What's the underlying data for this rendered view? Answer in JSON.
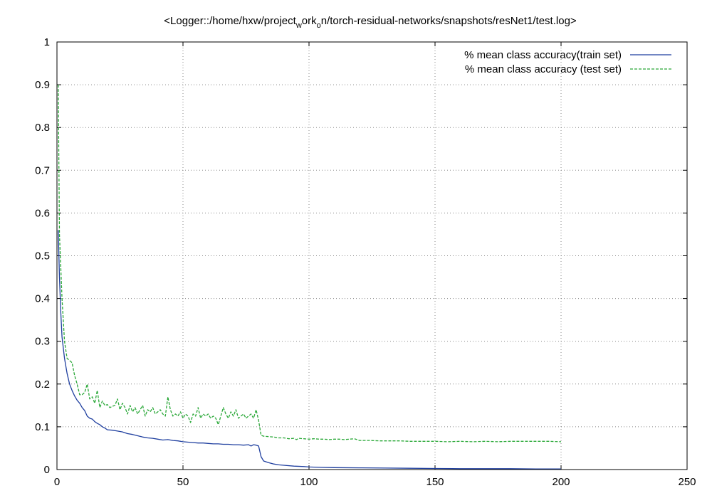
{
  "chart_data": {
    "type": "line",
    "title": {
      "pre": "<Logger::/home/hxw/project",
      "sub1": "w",
      "mid": "ork",
      "sub2": "o",
      "post": "n/torch-residual-networks/snapshots/resNet1/test.log>"
    },
    "xlabel": "",
    "ylabel": "",
    "xlim": [
      0,
      250
    ],
    "ylim": [
      0,
      1
    ],
    "xticks": [
      "0",
      "50",
      "100",
      "150",
      "200",
      "250"
    ],
    "yticks": [
      "0",
      "0.1",
      "0.2",
      "0.3",
      "0.4",
      "0.5",
      "0.6",
      "0.7",
      "0.8",
      "0.9",
      "1"
    ],
    "grid": true,
    "legend_position": "top-right",
    "series": [
      {
        "name": "% mean class accuracy(train set)",
        "color": "#1f3f9f",
        "style": "solid",
        "points": [
          [
            0.5,
            0.56
          ],
          [
            1,
            0.45
          ],
          [
            1.5,
            0.37
          ],
          [
            2,
            0.31
          ],
          [
            3,
            0.26
          ],
          [
            4,
            0.225
          ],
          [
            5,
            0.2
          ],
          [
            6,
            0.185
          ],
          [
            7,
            0.172
          ],
          [
            8,
            0.162
          ],
          [
            9,
            0.155
          ],
          [
            10,
            0.145
          ],
          [
            11,
            0.138
          ],
          [
            12,
            0.125
          ],
          [
            13,
            0.12
          ],
          [
            14,
            0.118
          ],
          [
            15,
            0.112
          ],
          [
            16,
            0.108
          ],
          [
            17,
            0.105
          ],
          [
            18,
            0.1
          ],
          [
            19,
            0.097
          ],
          [
            20,
            0.093
          ],
          [
            22,
            0.092
          ],
          [
            24,
            0.09
          ],
          [
            26,
            0.088
          ],
          [
            28,
            0.084
          ],
          [
            30,
            0.082
          ],
          [
            32,
            0.079
          ],
          [
            34,
            0.076
          ],
          [
            36,
            0.074
          ],
          [
            38,
            0.073
          ],
          [
            40,
            0.071
          ],
          [
            42,
            0.069
          ],
          [
            44,
            0.07
          ],
          [
            46,
            0.068
          ],
          [
            48,
            0.067
          ],
          [
            50,
            0.065
          ],
          [
            52,
            0.064
          ],
          [
            54,
            0.063
          ],
          [
            56,
            0.062
          ],
          [
            58,
            0.062
          ],
          [
            60,
            0.061
          ],
          [
            62,
            0.06
          ],
          [
            64,
            0.06
          ],
          [
            66,
            0.059
          ],
          [
            68,
            0.059
          ],
          [
            70,
            0.058
          ],
          [
            72,
            0.058
          ],
          [
            74,
            0.057
          ],
          [
            76,
            0.058
          ],
          [
            77,
            0.055
          ],
          [
            78,
            0.058
          ],
          [
            79,
            0.057
          ],
          [
            80,
            0.055
          ],
          [
            81,
            0.03
          ],
          [
            82,
            0.02
          ],
          [
            84,
            0.016
          ],
          [
            86,
            0.013
          ],
          [
            88,
            0.011
          ],
          [
            90,
            0.01
          ],
          [
            94,
            0.008
          ],
          [
            98,
            0.007
          ],
          [
            100,
            0.006
          ],
          [
            105,
            0.005
          ],
          [
            110,
            0.0045
          ],
          [
            120,
            0.004
          ],
          [
            130,
            0.0035
          ],
          [
            140,
            0.003
          ],
          [
            150,
            0.0025
          ],
          [
            160,
            0.002
          ],
          [
            170,
            0.002
          ],
          [
            180,
            0.002
          ],
          [
            190,
            0.0015
          ],
          [
            200,
            0.0015
          ]
        ]
      },
      {
        "name": "% mean class accuracy (test set)",
        "color": "#2aa838",
        "style": "dashed",
        "points": [
          [
            0.5,
            0.9
          ],
          [
            1,
            0.55
          ],
          [
            2,
            0.4
          ],
          [
            3,
            0.3
          ],
          [
            4,
            0.26
          ],
          [
            5,
            0.255
          ],
          [
            6,
            0.25
          ],
          [
            7,
            0.22
          ],
          [
            8,
            0.2
          ],
          [
            9,
            0.175
          ],
          [
            10,
            0.175
          ],
          [
            11,
            0.18
          ],
          [
            12,
            0.2
          ],
          [
            13,
            0.165
          ],
          [
            14,
            0.17
          ],
          [
            15,
            0.155
          ],
          [
            16,
            0.185
          ],
          [
            17,
            0.145
          ],
          [
            18,
            0.16
          ],
          [
            19,
            0.15
          ],
          [
            20,
            0.152
          ],
          [
            21,
            0.145
          ],
          [
            22,
            0.148
          ],
          [
            23,
            0.15
          ],
          [
            24,
            0.165
          ],
          [
            25,
            0.14
          ],
          [
            26,
            0.155
          ],
          [
            27,
            0.145
          ],
          [
            28,
            0.13
          ],
          [
            29,
            0.15
          ],
          [
            30,
            0.135
          ],
          [
            31,
            0.145
          ],
          [
            32,
            0.13
          ],
          [
            33,
            0.14
          ],
          [
            34,
            0.15
          ],
          [
            35,
            0.125
          ],
          [
            36,
            0.14
          ],
          [
            37,
            0.135
          ],
          [
            38,
            0.145
          ],
          [
            39,
            0.13
          ],
          [
            40,
            0.135
          ],
          [
            41,
            0.14
          ],
          [
            42,
            0.13
          ],
          [
            43,
            0.125
          ],
          [
            44,
            0.17
          ],
          [
            45,
            0.14
          ],
          [
            46,
            0.125
          ],
          [
            47,
            0.13
          ],
          [
            48,
            0.125
          ],
          [
            49,
            0.135
          ],
          [
            50,
            0.12
          ],
          [
            51,
            0.13
          ],
          [
            52,
            0.125
          ],
          [
            53,
            0.11
          ],
          [
            54,
            0.13
          ],
          [
            55,
            0.125
          ],
          [
            56,
            0.145
          ],
          [
            57,
            0.12
          ],
          [
            58,
            0.13
          ],
          [
            59,
            0.125
          ],
          [
            60,
            0.13
          ],
          [
            61,
            0.12
          ],
          [
            62,
            0.125
          ],
          [
            63,
            0.12
          ],
          [
            64,
            0.105
          ],
          [
            65,
            0.125
          ],
          [
            66,
            0.145
          ],
          [
            67,
            0.13
          ],
          [
            68,
            0.12
          ],
          [
            69,
            0.135
          ],
          [
            70,
            0.125
          ],
          [
            71,
            0.14
          ],
          [
            72,
            0.12
          ],
          [
            73,
            0.125
          ],
          [
            74,
            0.13
          ],
          [
            75,
            0.12
          ],
          [
            76,
            0.125
          ],
          [
            77,
            0.13
          ],
          [
            78,
            0.12
          ],
          [
            79,
            0.14
          ],
          [
            80,
            0.115
          ],
          [
            81,
            0.08
          ],
          [
            82,
            0.078
          ],
          [
            84,
            0.077
          ],
          [
            86,
            0.076
          ],
          [
            88,
            0.074
          ],
          [
            90,
            0.074
          ],
          [
            92,
            0.072
          ],
          [
            94,
            0.073
          ],
          [
            95,
            0.07
          ],
          [
            96,
            0.073
          ],
          [
            98,
            0.072
          ],
          [
            100,
            0.071
          ],
          [
            102,
            0.072
          ],
          [
            104,
            0.071
          ],
          [
            106,
            0.071
          ],
          [
            108,
            0.07
          ],
          [
            110,
            0.071
          ],
          [
            112,
            0.071
          ],
          [
            114,
            0.07
          ],
          [
            116,
            0.071
          ],
          [
            118,
            0.072
          ],
          [
            120,
            0.068
          ],
          [
            124,
            0.068
          ],
          [
            128,
            0.067
          ],
          [
            132,
            0.067
          ],
          [
            136,
            0.067
          ],
          [
            140,
            0.066
          ],
          [
            145,
            0.066
          ],
          [
            150,
            0.066
          ],
          [
            155,
            0.065
          ],
          [
            160,
            0.066
          ],
          [
            165,
            0.065
          ],
          [
            170,
            0.066
          ],
          [
            175,
            0.065
          ],
          [
            180,
            0.066
          ],
          [
            185,
            0.066
          ],
          [
            190,
            0.066
          ],
          [
            195,
            0.066
          ],
          [
            200,
            0.065
          ]
        ]
      }
    ]
  }
}
